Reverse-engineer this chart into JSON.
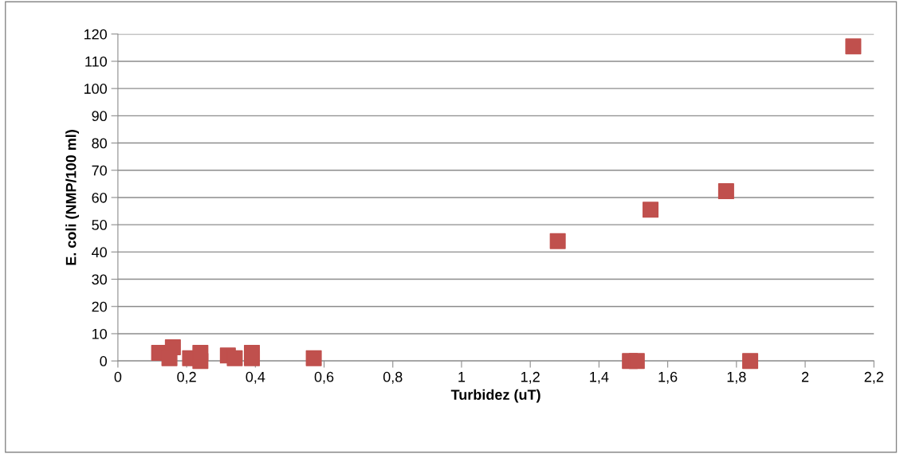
{
  "chart_data": {
    "type": "scatter",
    "xlabel": "Turbidez (uT)",
    "ylabel": "E. coli (NMP/100 ml)",
    "x": [
      0.12,
      0.16,
      0.15,
      0.21,
      0.24,
      0.24,
      0.32,
      0.34,
      0.39,
      0.39,
      0.57,
      1.28,
      1.49,
      1.51,
      1.55,
      1.77,
      1.84,
      2.14
    ],
    "series": [
      {
        "color": "#c0504d",
        "values": [
          3,
          5,
          1,
          1,
          0,
          3,
          2,
          1,
          1,
          3,
          1,
          44,
          0,
          0,
          55.5,
          62.3,
          0,
          115.5
        ]
      }
    ],
    "marker": "square",
    "grid": "y",
    "legend": false,
    "xlim": [
      0,
      2.2
    ],
    "ylim": [
      0,
      120
    ],
    "xticks": [
      0,
      {
        "value": 0.2,
        "label": "0,2"
      },
      {
        "value": 0.4,
        "label": "0,4"
      },
      {
        "value": 0.6,
        "label": "0,6"
      },
      {
        "value": 0.8,
        "label": "0,8"
      },
      1,
      {
        "value": 1.2,
        "label": "1,2"
      },
      {
        "value": 1.4,
        "label": "1,4"
      },
      {
        "value": 1.6,
        "label": "1,6"
      },
      {
        "value": 1.8,
        "label": "1,8"
      },
      2,
      {
        "value": 2.2,
        "label": "2,2"
      }
    ],
    "yticks": [
      0,
      10,
      20,
      30,
      40,
      50,
      60,
      70,
      80,
      90,
      100,
      110,
      120
    ]
  }
}
